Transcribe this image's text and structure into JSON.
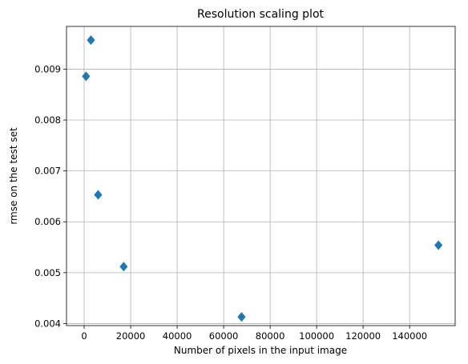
{
  "chart_data": {
    "type": "scatter",
    "title": "Resolution scaling plot",
    "xlabel": "Number of pixels in the input image",
    "ylabel": "rmse on the test set",
    "xlim": [
      -7600,
      159600
    ],
    "ylim": [
      0.00396,
      0.00984
    ],
    "xticks": [
      0,
      20000,
      40000,
      60000,
      80000,
      100000,
      120000,
      140000
    ],
    "xtick_labels": [
      "0",
      "20000",
      "40000",
      "60000",
      "80000",
      "100000",
      "120000",
      "140000"
    ],
    "yticks": [
      0.004,
      0.005,
      0.006,
      0.007,
      0.008,
      0.009
    ],
    "ytick_labels": [
      "0.004",
      "0.005",
      "0.006",
      "0.007",
      "0.008",
      "0.009"
    ],
    "grid": true,
    "marker": "diamond",
    "marker_color": "#1f77b4",
    "points": [
      {
        "x": 800,
        "y": 0.00886
      },
      {
        "x": 2900,
        "y": 0.00957
      },
      {
        "x": 6000,
        "y": 0.00653
      },
      {
        "x": 17000,
        "y": 0.00512
      },
      {
        "x": 67700,
        "y": 0.00413
      },
      {
        "x": 152400,
        "y": 0.00554
      }
    ]
  }
}
